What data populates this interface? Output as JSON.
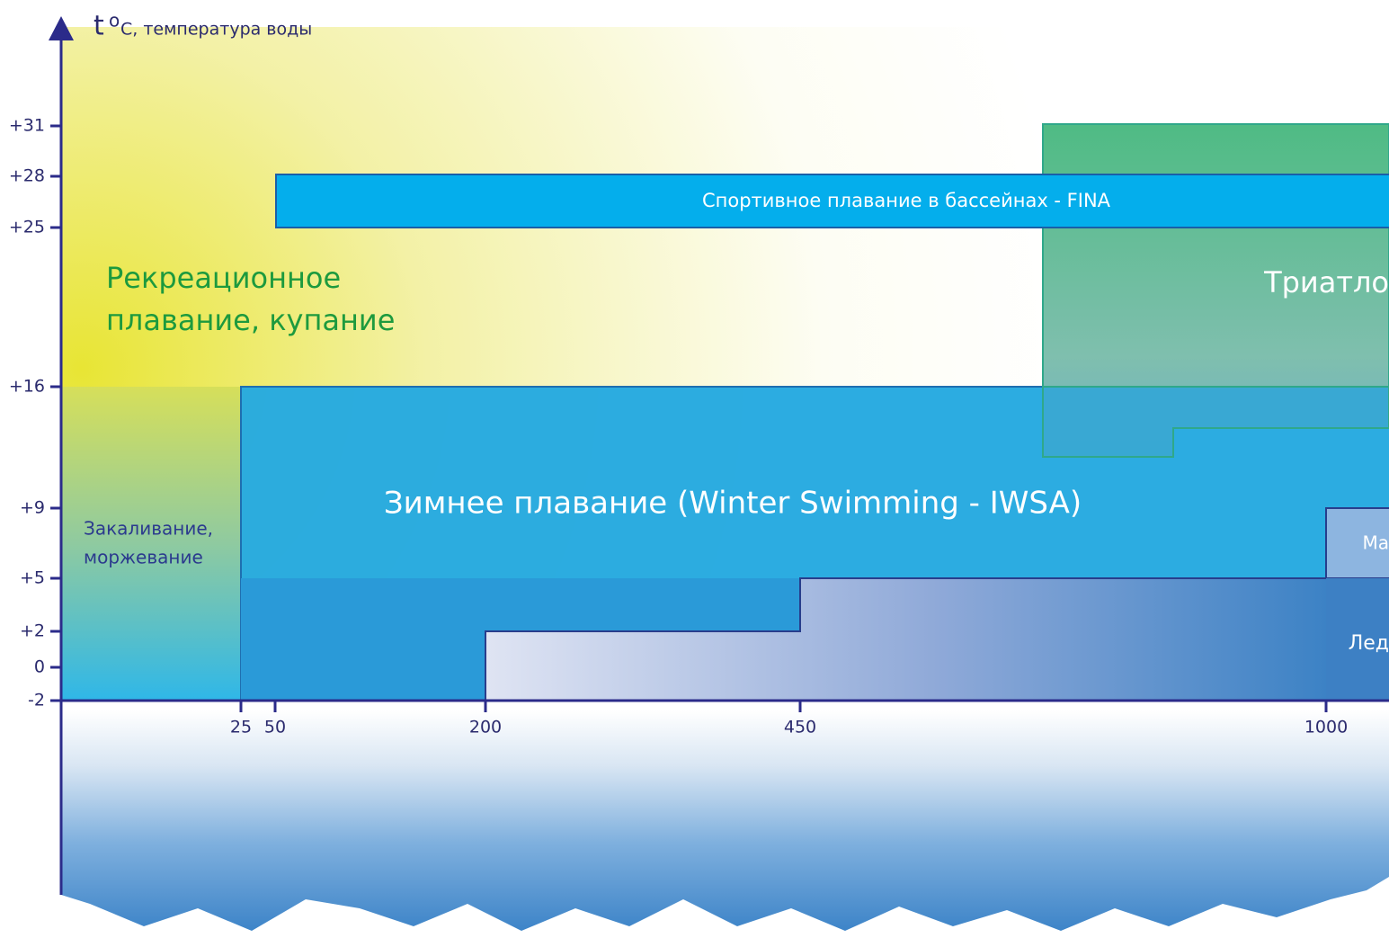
{
  "axis_title": {
    "symbol": "t",
    "degree": "o",
    "text": "C, температура воды"
  },
  "y_ticks": [
    "+31",
    "+28",
    "+25",
    "+16",
    "+9",
    "+5",
    "+2",
    "0",
    "-2"
  ],
  "x_ticks": [
    "25",
    "50",
    "200",
    "450",
    "1000"
  ],
  "zones": {
    "recreational": [
      "Рекреационное",
      "плавание, купание"
    ],
    "fina": "Спортивное плавание в бассейнах - FINA",
    "triathlon": "Триатло",
    "winter": "Зимнее плавание (Winter Swimming - IWSA)",
    "hardening": [
      "Закаливание,",
      "моржевание"
    ],
    "marathon": "Ма",
    "ice": "Лед"
  }
}
